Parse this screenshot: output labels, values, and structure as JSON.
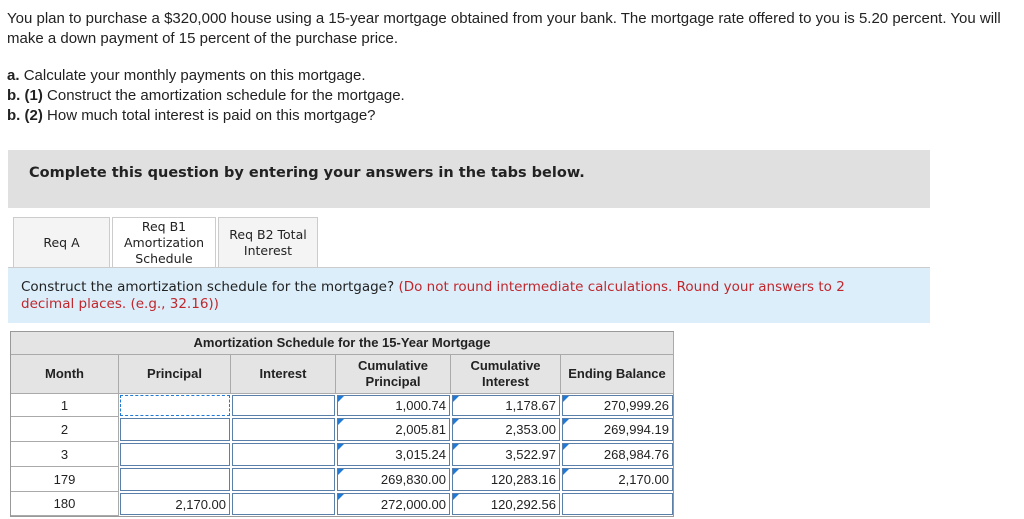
{
  "problem": {
    "text": "You plan to purchase a $320,000 house using a 15-year mortgage obtained from your bank. The mortgage rate offered to you is 5.20 percent. You will make a down payment of 15 percent of the purchase price.",
    "parts": [
      {
        "label": "a.",
        "text": "Calculate your monthly payments on this mortgage."
      },
      {
        "label": "b. (1)",
        "text": "Construct the amortization schedule for the mortgage."
      },
      {
        "label": "b. (2)",
        "text": "How much total interest is paid on this mortgage?"
      }
    ]
  },
  "banner": "Complete this question by entering your answers in the tabs below.",
  "tabs": [
    "Req A",
    "Req B1 Amortization Schedule",
    "Req B2 Total Interest"
  ],
  "instruction": {
    "text": "Construct the amortization schedule for the mortgage?",
    "note": "(Do not round intermediate calculations. Round your answers to 2 decimal places. (e.g., 32.16))"
  },
  "table": {
    "title": "Amortization Schedule for the 15-Year Mortgage",
    "headers": [
      "Month",
      "Principal",
      "Interest",
      "Cumulative Principal",
      "Cumulative Interest",
      "Ending Balance"
    ],
    "rows": [
      [
        "1",
        null,
        null,
        "1,000.74",
        "1,178.67",
        "270,999.26"
      ],
      [
        "2",
        null,
        null,
        "2,005.81",
        "2,353.00",
        "269,994.19"
      ],
      [
        "3",
        null,
        null,
        "3,015.24",
        "3,522.97",
        "268,984.76"
      ],
      [
        "179",
        null,
        null,
        "269,830.00",
        "120,283.16",
        "2,170.00"
      ],
      [
        "180",
        "2,170.00",
        null,
        "272,000.00",
        "120,292.56",
        null
      ]
    ]
  }
}
